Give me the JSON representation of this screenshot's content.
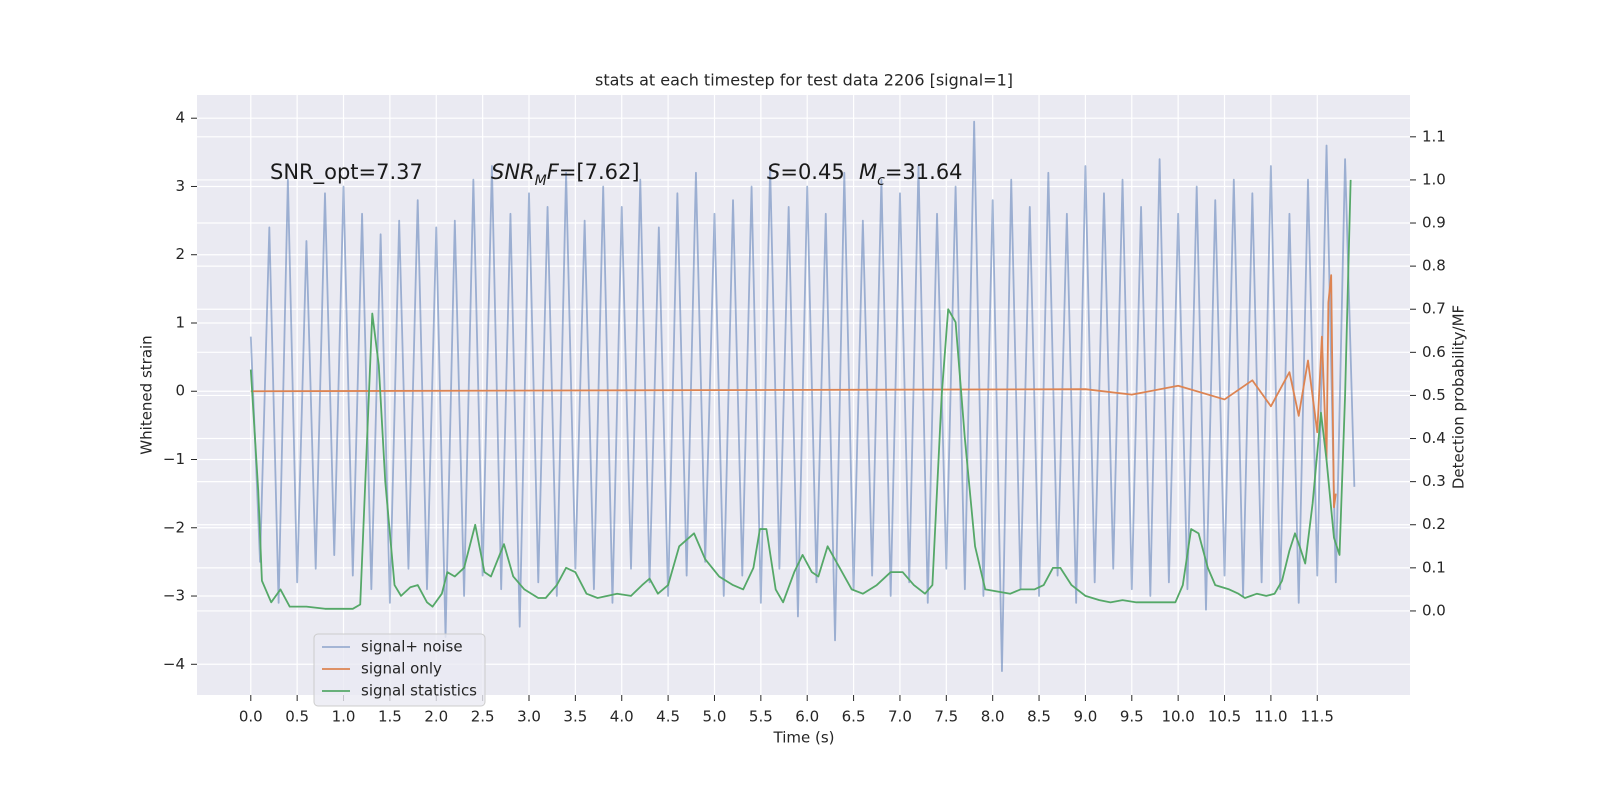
{
  "chart_data": {
    "type": "line",
    "title": "stats at each timestep for test data 2206 [signal=1]",
    "xlabel": "Time (s)",
    "ylabel": "Whitened strain",
    "y2label": "Detection probability/MF",
    "annotations": [
      [
        {
          "text": "SNR_opt=7.37"
        }
      ],
      [
        {
          "text": "SNR",
          "italic": true
        },
        {
          "text": "M",
          "italic": true,
          "sub": true
        },
        {
          "text": "F",
          "italic": true
        },
        {
          "text": "=[7.62]"
        }
      ],
      [
        {
          "text": "S",
          "italic": true
        },
        {
          "text": "=0.45"
        }
      ],
      [
        {
          "text": "M",
          "italic": true
        },
        {
          "text": "c",
          "italic": true,
          "sub": true
        },
        {
          "text": "=31.64"
        }
      ]
    ],
    "xlim": [
      -0.58,
      12.5
    ],
    "ylim": [
      -4.45,
      4.34
    ],
    "y2lim": [
      -0.195,
      1.197
    ],
    "xticks": [
      {
        "value": 0,
        "label": "0.0"
      },
      0.5,
      {
        "value": 1,
        "label": "1.0"
      },
      1.5,
      {
        "value": 2,
        "label": "2.0"
      },
      2.5,
      {
        "value": 3,
        "label": "3.0"
      },
      3.5,
      {
        "value": 4,
        "label": "4.0"
      },
      4.5,
      {
        "value": 5,
        "label": "5.0"
      },
      5.5,
      {
        "value": 6,
        "label": "6.0"
      },
      6.5,
      {
        "value": 7,
        "label": "7.0"
      },
      7.5,
      {
        "value": 8,
        "label": "8.0"
      },
      8.5,
      {
        "value": 9,
        "label": "9.0"
      },
      9.5,
      {
        "value": 10,
        "label": "10.0"
      },
      10.5,
      {
        "value": 11,
        "label": "11.0"
      },
      11.5
    ],
    "yticks": [
      {
        "value": -4,
        "label": "−4"
      },
      {
        "value": -3,
        "label": "−3"
      },
      {
        "value": -2,
        "label": "−2"
      },
      {
        "value": -1,
        "label": "−1"
      },
      0,
      1,
      2,
      3,
      4
    ],
    "y2ticks": [
      {
        "value": 0,
        "label": "0.0"
      },
      0.1,
      0.2,
      0.3,
      0.4,
      0.5,
      0.6,
      0.7,
      0.8,
      0.9,
      {
        "value": 1,
        "label": "1.0"
      },
      1.1
    ],
    "grid": true,
    "legend": "lower left",
    "series": [
      {
        "name": "signal+ noise",
        "color": "#4c72b0",
        "alpha": 0.5,
        "x": [
          0.0,
          0.1,
          0.2,
          0.3,
          0.4,
          0.5,
          0.6,
          0.7,
          0.8,
          0.9,
          1.0,
          1.1,
          1.2,
          1.3,
          1.4,
          1.5,
          1.6,
          1.7,
          1.8,
          1.9,
          2.0,
          2.1,
          2.2,
          2.3,
          2.4,
          2.5,
          2.6,
          2.7,
          2.8,
          2.9,
          3.0,
          3.1,
          3.2,
          3.3,
          3.4,
          3.5,
          3.6,
          3.7,
          3.8,
          3.9,
          4.0,
          4.1,
          4.2,
          4.3,
          4.4,
          4.5,
          4.6,
          4.7,
          4.8,
          4.9,
          5.0,
          5.1,
          5.2,
          5.3,
          5.4,
          5.5,
          5.6,
          5.7,
          5.8,
          5.9,
          6.0,
          6.1,
          6.2,
          6.3,
          6.4,
          6.5,
          6.6,
          6.7,
          6.8,
          6.9,
          7.0,
          7.1,
          7.2,
          7.3,
          7.4,
          7.5,
          7.6,
          7.7,
          7.8,
          7.9,
          8.0,
          8.1,
          8.2,
          8.3,
          8.4,
          8.5,
          8.6,
          8.7,
          8.8,
          8.9,
          9.0,
          9.1,
          9.2,
          9.3,
          9.4,
          9.5,
          9.6,
          9.7,
          9.8,
          9.9,
          10.0,
          10.1,
          10.2,
          10.3,
          10.4,
          10.5,
          10.6,
          10.7,
          10.8,
          10.9,
          11.0,
          11.1,
          11.2,
          11.3,
          11.4,
          11.5,
          11.6,
          11.7,
          11.8,
          11.9
        ],
        "values": [
          0.8,
          -2.5,
          2.4,
          -3.1,
          3.1,
          -2.8,
          2.2,
          -2.6,
          2.9,
          -2.4,
          3.0,
          -2.7,
          2.6,
          -2.9,
          2.3,
          -3.1,
          2.5,
          -2.6,
          2.8,
          -2.9,
          2.4,
          -3.6,
          2.5,
          -3.0,
          3.1,
          -2.7,
          3.3,
          -2.9,
          2.6,
          -3.45,
          2.9,
          -2.8,
          2.7,
          -3.0,
          3.2,
          -2.6,
          2.5,
          -2.9,
          3.0,
          -3.1,
          2.7,
          -2.6,
          3.1,
          -2.8,
          2.4,
          -3.0,
          2.9,
          -2.7,
          3.2,
          -2.5,
          2.6,
          -3.0,
          2.8,
          -2.7,
          3.0,
          -3.1,
          3.3,
          -2.6,
          2.7,
          -3.3,
          3.0,
          -2.8,
          2.6,
          -3.65,
          3.2,
          -2.9,
          2.5,
          -2.7,
          3.1,
          -3.0,
          2.9,
          -2.8,
          3.3,
          -3.1,
          2.6,
          -2.6,
          3.0,
          -2.9,
          3.95,
          -3.0,
          2.8,
          -4.1,
          3.1,
          -2.9,
          2.7,
          -3.0,
          3.2,
          -2.7,
          2.6,
          -3.1,
          3.3,
          -2.8,
          2.9,
          -2.6,
          3.1,
          -2.9,
          2.7,
          -3.0,
          3.4,
          -2.8,
          2.6,
          -2.9,
          3.0,
          -3.2,
          2.8,
          -2.7,
          3.1,
          -3.0,
          2.9,
          -2.8,
          3.3,
          -2.9,
          2.6,
          -3.1,
          3.1,
          -2.7,
          3.6,
          -2.8,
          3.4,
          -1.4
        ]
      },
      {
        "name": "signal only",
        "color": "#dd8452",
        "x": [
          0.0,
          9.0,
          9.5,
          10.0,
          10.5,
          10.8,
          11.0,
          11.2,
          11.3,
          11.4,
          11.5,
          11.55,
          11.6,
          11.62,
          11.65,
          11.68,
          11.7
        ],
        "values": [
          0,
          0.03,
          -0.05,
          0.08,
          -0.12,
          0.16,
          -0.22,
          0.28,
          -0.36,
          0.45,
          -0.6,
          0.8,
          -1.0,
          1.3,
          1.7,
          -1.7,
          -1.5
        ]
      },
      {
        "name": "signal statistics",
        "color": "#55a868",
        "axis": "y2",
        "x": [
          0.0,
          0.08,
          0.12,
          0.22,
          0.32,
          0.42,
          0.6,
          0.8,
          1.0,
          1.1,
          1.18,
          1.31,
          1.38,
          1.45,
          1.55,
          1.62,
          1.72,
          1.8,
          1.9,
          1.96,
          2.06,
          2.12,
          2.2,
          2.3,
          2.42,
          2.52,
          2.59,
          2.73,
          2.83,
          2.95,
          3.1,
          3.18,
          3.3,
          3.4,
          3.5,
          3.62,
          3.74,
          3.95,
          4.1,
          4.22,
          4.3,
          4.39,
          4.5,
          4.62,
          4.78,
          4.9,
          5.05,
          5.2,
          5.31,
          5.42,
          5.49,
          5.56,
          5.66,
          5.74,
          5.86,
          5.95,
          6.05,
          6.12,
          6.22,
          6.35,
          6.48,
          6.6,
          6.75,
          6.9,
          7.03,
          7.15,
          7.27,
          7.35,
          7.45,
          7.52,
          7.6,
          7.7,
          7.81,
          7.92,
          8.05,
          8.19,
          8.3,
          8.45,
          8.55,
          8.65,
          8.73,
          8.85,
          9.0,
          9.15,
          9.27,
          9.4,
          9.55,
          9.7,
          9.85,
          9.97,
          10.05,
          10.14,
          10.22,
          10.32,
          10.4,
          10.55,
          10.65,
          10.72,
          10.85,
          10.95,
          11.04,
          11.12,
          11.2,
          11.26,
          11.31,
          11.37,
          11.45,
          11.54,
          11.6,
          11.68,
          11.74,
          11.8,
          11.86
        ],
        "values": [
          0.56,
          0.28,
          0.07,
          0.02,
          0.05,
          0.01,
          0.01,
          0.005,
          0.005,
          0.005,
          0.015,
          0.69,
          0.57,
          0.3,
          0.06,
          0.035,
          0.055,
          0.06,
          0.02,
          0.01,
          0.04,
          0.09,
          0.08,
          0.1,
          0.2,
          0.09,
          0.08,
          0.155,
          0.08,
          0.05,
          0.03,
          0.03,
          0.06,
          0.1,
          0.09,
          0.04,
          0.03,
          0.04,
          0.035,
          0.06,
          0.075,
          0.04,
          0.06,
          0.15,
          0.18,
          0.12,
          0.08,
          0.06,
          0.05,
          0.1,
          0.19,
          0.19,
          0.05,
          0.02,
          0.09,
          0.13,
          0.09,
          0.08,
          0.15,
          0.1,
          0.05,
          0.04,
          0.06,
          0.09,
          0.09,
          0.06,
          0.04,
          0.06,
          0.5,
          0.7,
          0.67,
          0.4,
          0.15,
          0.05,
          0.045,
          0.04,
          0.05,
          0.05,
          0.06,
          0.1,
          0.1,
          0.06,
          0.035,
          0.025,
          0.02,
          0.025,
          0.02,
          0.02,
          0.02,
          0.02,
          0.06,
          0.19,
          0.18,
          0.1,
          0.06,
          0.05,
          0.04,
          0.03,
          0.04,
          0.035,
          0.04,
          0.07,
          0.14,
          0.18,
          0.15,
          0.11,
          0.25,
          0.46,
          0.35,
          0.17,
          0.13,
          0.5,
          1.0
        ]
      }
    ]
  }
}
